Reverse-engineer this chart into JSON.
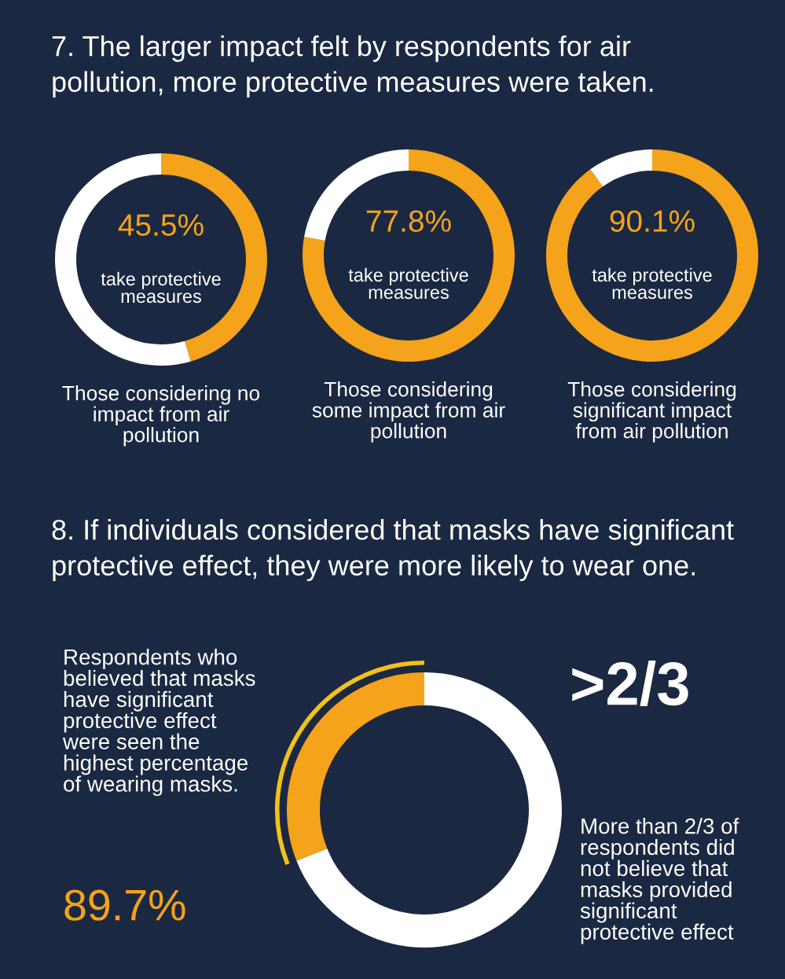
{
  "chart_data": [
    {
      "type": "donut",
      "title": "7. The larger impact felt by respondents for air pollution, more protective measures were taken.",
      "categories": [
        null,
        null
      ],
      "values": [
        45.5,
        54.5
      ],
      "colors": [
        "#f5a31a",
        "#ffffff"
      ],
      "annotations": [
        "45.5%",
        "take protective measures",
        "Those considering no impact from air pollution"
      ]
    },
    {
      "type": "donut",
      "categories": [
        null,
        null
      ],
      "values": [
        77.8,
        22.2
      ],
      "colors": [
        "#f5a31a",
        "#ffffff"
      ],
      "annotations": [
        "77.8%",
        "take protective measures",
        "Those considering some impact from air pollution"
      ]
    },
    {
      "type": "donut",
      "categories": [
        null,
        null
      ],
      "values": [
        90.1,
        9.9
      ],
      "colors": [
        "#f5a31a",
        "#ffffff"
      ],
      "annotations": [
        "90.1%",
        "take protective measures",
        "Those considering significant impact from air pollution"
      ]
    },
    {
      "type": "donut",
      "title": "8. If individuals considered that masks have significant protective effect, they were more likely to wear one.",
      "categories": [
        null,
        null
      ],
      "values": [
        69,
        31
      ],
      "colors": [
        "#ffffff",
        "#f5a31a"
      ],
      "annotations": [
        "Respondents who believed that masks have significant protective effect were seen the highest percentage of wearing masks.",
        "89.7%",
        ">2/3",
        "More than 2/3 of respondents did not believe that masks provided significant protective effect"
      ]
    }
  ]
}
